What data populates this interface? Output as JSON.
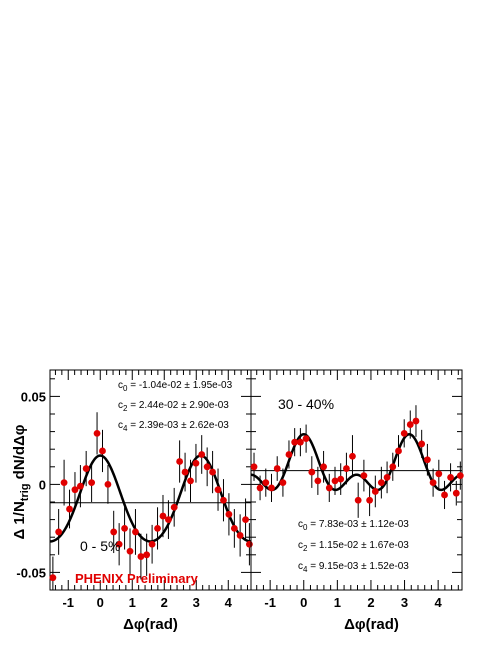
{
  "figure": {
    "ylabel": "Δ 1/N",
    "ylabel_sub": "trig",
    "ylabel_tail": " dN/dΔφ",
    "preliminary_label": "PHENIX Preliminary",
    "colors": {
      "points": "#e00000",
      "fit": "#000000",
      "errorbars": "#000000",
      "baseline": "#000000",
      "preliminary": "#e00000"
    }
  },
  "chart_data": [
    {
      "type": "scatter",
      "centrality_label": "0 - 5%",
      "xlabel": "Δφ(rad)",
      "xlim": [
        -1.57,
        4.71
      ],
      "ylim": [
        -0.06,
        0.065
      ],
      "yticks": [
        0.05,
        0,
        -0.05
      ],
      "ytick_labels": [
        "0.05",
        "0",
        "-0.05"
      ],
      "xticks": [
        -1,
        0,
        1,
        2,
        3,
        4
      ],
      "xtick_labels": [
        "-1",
        "0",
        "1",
        "2",
        "3",
        "4"
      ],
      "fit": {
        "c0": -0.0104,
        "c2": 0.0244,
        "c4": 0.00239
      },
      "params": [
        {
          "name": "c",
          "sub": "0",
          "text": " = -1.04e-02 ± 1.95e-03"
        },
        {
          "name": "c",
          "sub": "2",
          "text": " = 2.44e-02 ± 2.90e-03"
        },
        {
          "name": "c",
          "sub": "4",
          "text": " = 2.39e-03 ± 2.62e-03"
        }
      ],
      "points": [
        {
          "x": -1.48,
          "y": -0.053,
          "err": 0.012
        },
        {
          "x": -1.3,
          "y": -0.027,
          "err": 0.013
        },
        {
          "x": -1.13,
          "y": 0.001,
          "err": 0.013
        },
        {
          "x": -0.96,
          "y": -0.014,
          "err": 0.011
        },
        {
          "x": -0.79,
          "y": -0.003,
          "err": 0.01
        },
        {
          "x": -0.62,
          "y": -0.001,
          "err": 0.012
        },
        {
          "x": -0.44,
          "y": 0.009,
          "err": 0.01
        },
        {
          "x": -0.27,
          "y": 0.001,
          "err": 0.011
        },
        {
          "x": -0.1,
          "y": 0.029,
          "err": 0.012
        },
        {
          "x": 0.07,
          "y": 0.019,
          "err": 0.012
        },
        {
          "x": 0.24,
          "y": 0.0,
          "err": 0.011
        },
        {
          "x": 0.42,
          "y": -0.027,
          "err": 0.012
        },
        {
          "x": 0.59,
          "y": -0.034,
          "err": 0.012
        },
        {
          "x": 0.76,
          "y": -0.025,
          "err": 0.012
        },
        {
          "x": 0.93,
          "y": -0.038,
          "err": 0.013
        },
        {
          "x": 1.1,
          "y": -0.027,
          "err": 0.013
        },
        {
          "x": 1.27,
          "y": -0.041,
          "err": 0.013
        },
        {
          "x": 1.45,
          "y": -0.04,
          "err": 0.012
        },
        {
          "x": 1.62,
          "y": -0.034,
          "err": 0.011
        },
        {
          "x": 1.79,
          "y": -0.025,
          "err": 0.012
        },
        {
          "x": 1.96,
          "y": -0.018,
          "err": 0.012
        },
        {
          "x": 2.13,
          "y": -0.02,
          "err": 0.011
        },
        {
          "x": 2.31,
          "y": -0.013,
          "err": 0.011
        },
        {
          "x": 2.48,
          "y": 0.013,
          "err": 0.012
        },
        {
          "x": 2.65,
          "y": 0.007,
          "err": 0.011
        },
        {
          "x": 2.82,
          "y": 0.002,
          "err": 0.012
        },
        {
          "x": 2.99,
          "y": 0.012,
          "err": 0.011
        },
        {
          "x": 3.17,
          "y": 0.017,
          "err": 0.011
        },
        {
          "x": 3.34,
          "y": 0.01,
          "err": 0.011
        },
        {
          "x": 3.51,
          "y": 0.007,
          "err": 0.012
        },
        {
          "x": 3.68,
          "y": -0.003,
          "err": 0.012
        },
        {
          "x": 3.85,
          "y": -0.009,
          "err": 0.012
        },
        {
          "x": 4.02,
          "y": -0.017,
          "err": 0.012
        },
        {
          "x": 4.19,
          "y": -0.025,
          "err": 0.011
        },
        {
          "x": 4.37,
          "y": -0.029,
          "err": 0.012
        },
        {
          "x": 4.54,
          "y": -0.02,
          "err": 0.012
        },
        {
          "x": 4.66,
          "y": -0.034,
          "err": 0.012
        }
      ]
    },
    {
      "type": "scatter",
      "centrality_label": "30 - 40%",
      "xlabel": "Δφ(rad)",
      "xlim": [
        -1.57,
        4.71
      ],
      "ylim": [
        -0.06,
        0.065
      ],
      "xticks": [
        -1,
        0,
        1,
        2,
        3,
        4
      ],
      "xtick_labels": [
        "-1",
        "0",
        "1",
        "2",
        "3",
        "4"
      ],
      "fit": {
        "c0": 0.00783,
        "c2": 0.0115,
        "c4": 0.00915
      },
      "params": [
        {
          "name": "c",
          "sub": "0",
          "text": " = 7.83e-03 ± 1.12e-03"
        },
        {
          "name": "c",
          "sub": "2",
          "text": " = 1.15e-02 ± 1.67e-03"
        },
        {
          "name": "c",
          "sub": "4",
          "text": " = 9.15e-03 ± 1.52e-03"
        }
      ],
      "points": [
        {
          "x": -1.48,
          "y": 0.01,
          "err": 0.008
        },
        {
          "x": -1.3,
          "y": -0.002,
          "err": 0.007
        },
        {
          "x": -1.13,
          "y": 0.001,
          "err": 0.008
        },
        {
          "x": -0.96,
          "y": -0.002,
          "err": 0.008
        },
        {
          "x": -0.79,
          "y": 0.009,
          "err": 0.007
        },
        {
          "x": -0.62,
          "y": 0.001,
          "err": 0.008
        },
        {
          "x": -0.44,
          "y": 0.017,
          "err": 0.008
        },
        {
          "x": -0.27,
          "y": 0.024,
          "err": 0.008
        },
        {
          "x": -0.1,
          "y": 0.024,
          "err": 0.008
        },
        {
          "x": 0.07,
          "y": 0.026,
          "err": 0.008
        },
        {
          "x": 0.24,
          "y": 0.007,
          "err": 0.009
        },
        {
          "x": 0.42,
          "y": 0.002,
          "err": 0.008
        },
        {
          "x": 0.59,
          "y": 0.01,
          "err": 0.009
        },
        {
          "x": 0.76,
          "y": -0.002,
          "err": 0.008
        },
        {
          "x": 0.93,
          "y": 0.002,
          "err": 0.008
        },
        {
          "x": 1.1,
          "y": 0.003,
          "err": 0.009
        },
        {
          "x": 1.27,
          "y": 0.009,
          "err": 0.009
        },
        {
          "x": 1.45,
          "y": 0.016,
          "err": 0.012
        },
        {
          "x": 1.62,
          "y": -0.009,
          "err": 0.01
        },
        {
          "x": 1.79,
          "y": 0.005,
          "err": 0.009
        },
        {
          "x": 1.96,
          "y": -0.009,
          "err": 0.009
        },
        {
          "x": 2.13,
          "y": -0.004,
          "err": 0.009
        },
        {
          "x": 2.31,
          "y": 0.001,
          "err": 0.009
        },
        {
          "x": 2.48,
          "y": 0.004,
          "err": 0.009
        },
        {
          "x": 2.65,
          "y": 0.01,
          "err": 0.008
        },
        {
          "x": 2.82,
          "y": 0.019,
          "err": 0.009
        },
        {
          "x": 2.99,
          "y": 0.029,
          "err": 0.008
        },
        {
          "x": 3.17,
          "y": 0.034,
          "err": 0.008
        },
        {
          "x": 3.34,
          "y": 0.036,
          "err": 0.009
        },
        {
          "x": 3.51,
          "y": 0.023,
          "err": 0.008
        },
        {
          "x": 3.68,
          "y": 0.014,
          "err": 0.009
        },
        {
          "x": 3.85,
          "y": 0.001,
          "err": 0.008
        },
        {
          "x": 4.02,
          "y": 0.006,
          "err": 0.008
        },
        {
          "x": 4.19,
          "y": -0.006,
          "err": 0.008
        },
        {
          "x": 4.37,
          "y": 0.004,
          "err": 0.008
        },
        {
          "x": 4.54,
          "y": -0.005,
          "err": 0.007
        },
        {
          "x": 4.66,
          "y": 0.005,
          "err": 0.008
        }
      ]
    }
  ]
}
